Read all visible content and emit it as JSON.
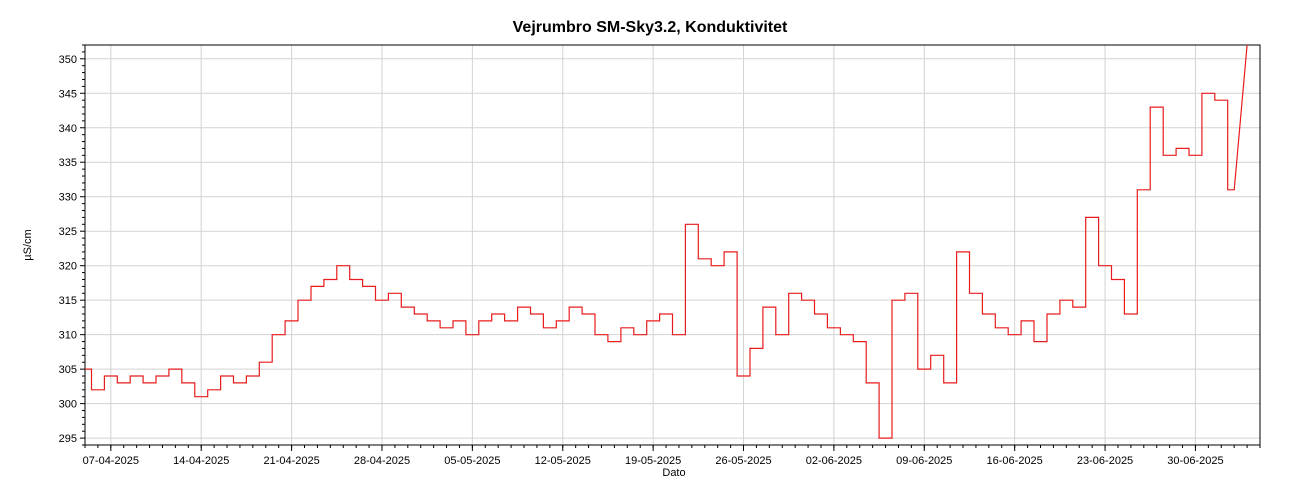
{
  "chart_data": {
    "type": "line",
    "title": "Vejrumbro SM-Sky3.2, Konduktivitet",
    "xlabel": "Dato",
    "ylabel": "µS/cm",
    "ylim": [
      294,
      352
    ],
    "xlim": [
      "2025-04-05",
      "2025-07-05"
    ],
    "y_ticks": [
      295,
      300,
      305,
      310,
      315,
      320,
      325,
      330,
      335,
      340,
      345,
      350
    ],
    "x_ticks": [
      "07-04-2025",
      "14-04-2025",
      "21-04-2025",
      "28-04-2025",
      "05-05-2025",
      "12-05-2025",
      "19-05-2025",
      "26-05-2025",
      "02-06-2025",
      "09-06-2025",
      "16-06-2025",
      "23-06-2025",
      "30-06-2025"
    ],
    "grid": true,
    "line_color": "#e81c1c",
    "series": [
      {
        "x": [
          "2025-04-05",
          "2025-04-06",
          "2025-04-07",
          "2025-04-08",
          "2025-04-09",
          "2025-04-10",
          "2025-04-11",
          "2025-04-12",
          "2025-04-13",
          "2025-04-14",
          "2025-04-15",
          "2025-04-16",
          "2025-04-17",
          "2025-04-18",
          "2025-04-19",
          "2025-04-20",
          "2025-04-21",
          "2025-04-22",
          "2025-04-23",
          "2025-04-24",
          "2025-04-25",
          "2025-04-26",
          "2025-04-27",
          "2025-04-28",
          "2025-04-29",
          "2025-04-30",
          "2025-05-01",
          "2025-05-02",
          "2025-05-03",
          "2025-05-04",
          "2025-05-05",
          "2025-05-06",
          "2025-05-07",
          "2025-05-08",
          "2025-05-09",
          "2025-05-10",
          "2025-05-11",
          "2025-05-12",
          "2025-05-13",
          "2025-05-14",
          "2025-05-15",
          "2025-05-16",
          "2025-05-17",
          "2025-05-18",
          "2025-05-19",
          "2025-05-20",
          "2025-05-21",
          "2025-05-22",
          "2025-05-23",
          "2025-05-24",
          "2025-05-25",
          "2025-05-26",
          "2025-05-27",
          "2025-05-28",
          "2025-05-29",
          "2025-05-30",
          "2025-05-31",
          "2025-06-01",
          "2025-06-02",
          "2025-06-03",
          "2025-06-04",
          "2025-06-05",
          "2025-06-06",
          "2025-06-07",
          "2025-06-08",
          "2025-06-09",
          "2025-06-10",
          "2025-06-11",
          "2025-06-12",
          "2025-06-13",
          "2025-06-14",
          "2025-06-15",
          "2025-06-16",
          "2025-06-17",
          "2025-06-18",
          "2025-06-19",
          "2025-06-20",
          "2025-06-21",
          "2025-06-22",
          "2025-06-23",
          "2025-06-24",
          "2025-06-25",
          "2025-06-26",
          "2025-06-27",
          "2025-06-28",
          "2025-06-29",
          "2025-06-30",
          "2025-07-01",
          "2025-07-02",
          "2025-07-03"
        ],
        "y": [
          305,
          302,
          304,
          303,
          304,
          303,
          304,
          305,
          303,
          301,
          302,
          304,
          303,
          304,
          306,
          310,
          312,
          315,
          317,
          318,
          320,
          318,
          317,
          315,
          316,
          314,
          313,
          312,
          311,
          312,
          310,
          312,
          313,
          312,
          314,
          313,
          311,
          312,
          314,
          313,
          310,
          309,
          311,
          310,
          312,
          313,
          310,
          326,
          321,
          320,
          322,
          304,
          308,
          314,
          310,
          316,
          315,
          313,
          311,
          310,
          309,
          303,
          295,
          315,
          316,
          305,
          307,
          303,
          322,
          316,
          313,
          311,
          310,
          312,
          309,
          313,
          315,
          314,
          327,
          320,
          318,
          313,
          331,
          343,
          336,
          337,
          336,
          345,
          344,
          331
        ],
        "extra_peaks": [
          {
            "x": "2025-07-04",
            "y": 352
          }
        ]
      }
    ]
  }
}
